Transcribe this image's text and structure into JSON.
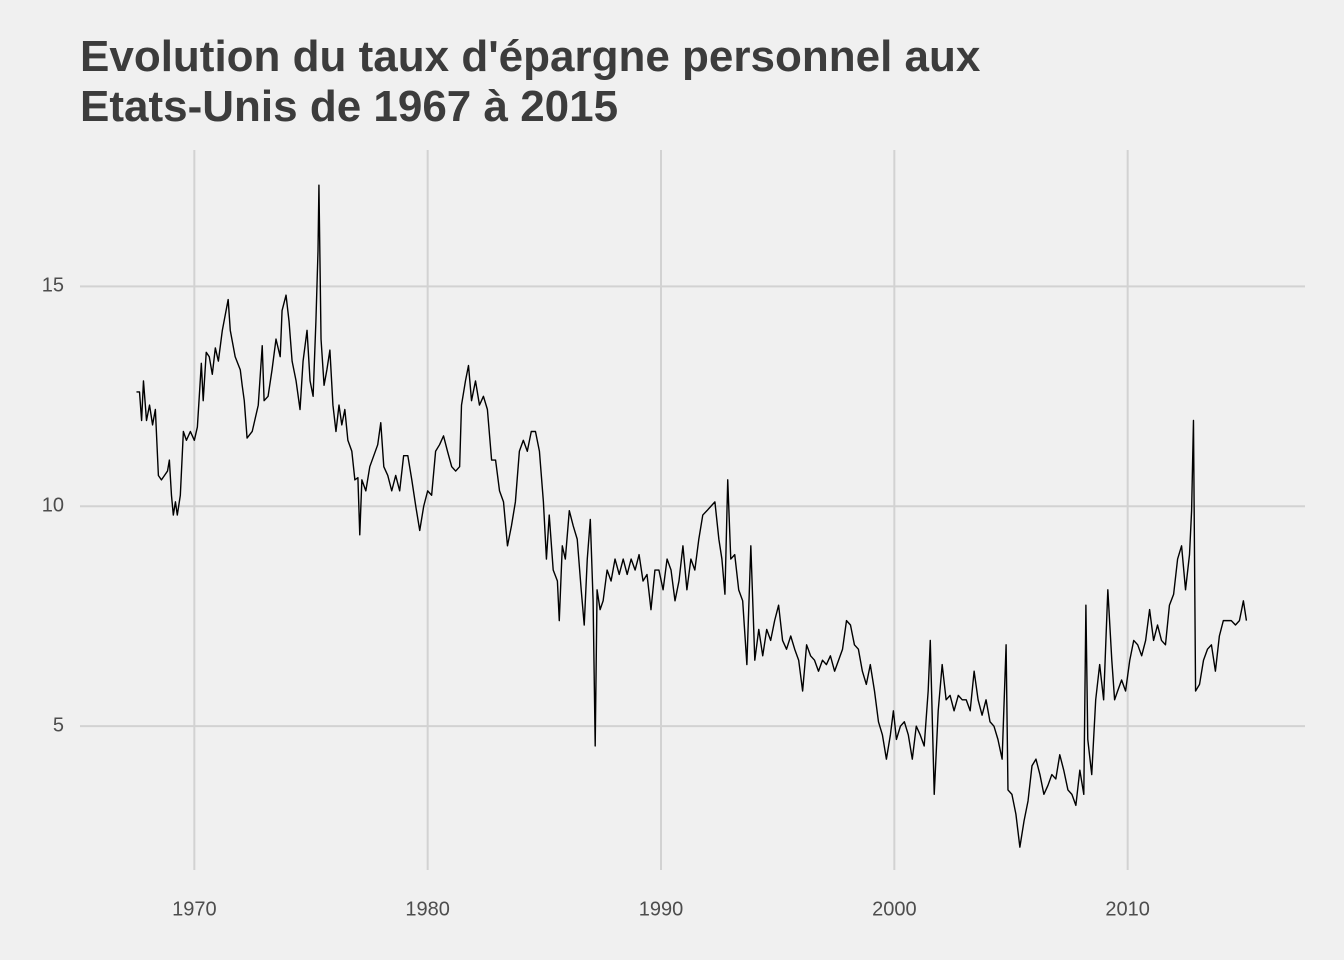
{
  "chart_data": {
    "type": "line",
    "title": "Evolution du taux d'épargne personnel aux Etats-Unis de 1967 à 2015",
    "x": [
      1967.52,
      1967.65,
      1967.74,
      1967.82,
      1967.95,
      1968.08,
      1968.21,
      1968.33,
      1968.46,
      1968.59,
      1968.72,
      1968.85,
      1968.93,
      1969.02,
      1969.1,
      1969.19,
      1969.27,
      1969.4,
      1969.53,
      1969.66,
      1969.83,
      1970.0,
      1970.13,
      1970.3,
      1970.38,
      1970.51,
      1970.64,
      1970.77,
      1970.9,
      1971.03,
      1971.2,
      1971.45,
      1971.54,
      1971.75,
      1971.97,
      1972.05,
      1972.14,
      1972.26,
      1972.48,
      1972.74,
      1972.91,
      1972.99,
      1973.16,
      1973.33,
      1973.5,
      1973.68,
      1973.76,
      1973.93,
      1974.06,
      1974.19,
      1974.36,
      1974.53,
      1974.66,
      1974.83,
      1974.96,
      1975.09,
      1975.21,
      1975.3,
      1975.34,
      1975.43,
      1975.56,
      1975.68,
      1975.81,
      1975.94,
      1976.07,
      1976.2,
      1976.32,
      1976.45,
      1976.58,
      1976.75,
      1976.88,
      1977.01,
      1977.09,
      1977.18,
      1977.35,
      1977.52,
      1977.69,
      1977.86,
      1977.99,
      1978.12,
      1978.29,
      1978.46,
      1978.63,
      1978.8,
      1978.97,
      1979.15,
      1979.32,
      1979.49,
      1979.66,
      1979.83,
      1980.0,
      1980.17,
      1980.34,
      1980.51,
      1980.68,
      1980.85,
      1981.03,
      1981.2,
      1981.37,
      1981.45,
      1981.62,
      1981.75,
      1981.88,
      1982.05,
      1982.22,
      1982.39,
      1982.56,
      1982.74,
      1982.91,
      1983.08,
      1983.25,
      1983.42,
      1983.59,
      1983.76,
      1983.93,
      1984.1,
      1984.27,
      1984.44,
      1984.62,
      1984.79,
      1984.96,
      1985.09,
      1985.21,
      1985.38,
      1985.56,
      1985.64,
      1985.77,
      1985.9,
      1986.07,
      1986.24,
      1986.41,
      1986.58,
      1986.71,
      1986.84,
      1986.97,
      1987.09,
      1987.18,
      1987.26,
      1987.39,
      1987.52,
      1987.69,
      1987.86,
      1988.03,
      1988.21,
      1988.38,
      1988.55,
      1988.72,
      1988.89,
      1989.06,
      1989.23,
      1989.4,
      1989.57,
      1989.74,
      1989.91,
      1990.09,
      1990.26,
      1990.43,
      1990.6,
      1990.77,
      1990.94,
      1991.11,
      1991.28,
      1991.45,
      1991.62,
      1991.79,
      1991.97,
      1992.14,
      1992.31,
      1992.48,
      1992.61,
      1992.74,
      1992.86,
      1992.99,
      1993.16,
      1993.33,
      1993.5,
      1993.68,
      1993.85,
      1994.02,
      1994.19,
      1994.36,
      1994.53,
      1994.7,
      1994.87,
      1995.04,
      1995.21,
      1995.38,
      1995.56,
      1995.73,
      1995.9,
      1996.07,
      1996.24,
      1996.41,
      1996.58,
      1996.75,
      1996.92,
      1997.09,
      1997.26,
      1997.44,
      1997.61,
      1997.78,
      1997.95,
      1998.12,
      1998.29,
      1998.46,
      1998.63,
      1998.8,
      1998.97,
      1999.15,
      1999.32,
      1999.49,
      1999.66,
      1999.83,
      1999.96,
      2000.09,
      2000.26,
      2000.43,
      2000.6,
      2000.77,
      2000.94,
      2001.11,
      2001.28,
      2001.45,
      2001.54,
      2001.71,
      2001.88,
      2002.05,
      2002.22,
      2002.39,
      2002.56,
      2002.74,
      2002.91,
      2003.08,
      2003.25,
      2003.42,
      2003.59,
      2003.76,
      2003.93,
      2004.1,
      2004.27,
      2004.44,
      2004.62,
      2004.79,
      2004.87,
      2005.04,
      2005.21,
      2005.38,
      2005.56,
      2005.73,
      2005.9,
      2006.07,
      2006.24,
      2006.41,
      2006.58,
      2006.75,
      2006.92,
      2007.09,
      2007.26,
      2007.44,
      2007.61,
      2007.78,
      2007.95,
      2008.12,
      2008.21,
      2008.29,
      2008.46,
      2008.63,
      2008.8,
      2008.97,
      2009.15,
      2009.32,
      2009.44,
      2009.57,
      2009.74,
      2009.91,
      2010.09,
      2010.26,
      2010.43,
      2010.6,
      2010.77,
      2010.94,
      2011.11,
      2011.28,
      2011.45,
      2011.62,
      2011.79,
      2011.97,
      2012.14,
      2012.31,
      2012.48,
      2012.65,
      2012.74,
      2012.82,
      2012.91,
      2013.08,
      2013.25,
      2013.42,
      2013.59,
      2013.76,
      2013.93,
      2014.1,
      2014.27,
      2014.44,
      2014.62,
      2014.79,
      2014.96,
      2015.09
    ],
    "series": [
      {
        "color": "#000000",
        "values": [
          12.6,
          12.6,
          11.95,
          12.85,
          11.95,
          12.3,
          11.85,
          12.2,
          10.7,
          10.6,
          10.7,
          10.8,
          11.05,
          10.25,
          9.8,
          10.1,
          9.8,
          10.25,
          11.7,
          11.5,
          11.7,
          11.5,
          11.8,
          13.25,
          12.4,
          13.5,
          13.4,
          13.0,
          13.6,
          13.3,
          14.0,
          14.7,
          14.0,
          13.4,
          13.1,
          12.75,
          12.4,
          11.55,
          11.7,
          12.3,
          13.65,
          12.4,
          12.5,
          13.1,
          13.8,
          13.4,
          14.45,
          14.8,
          14.2,
          13.3,
          12.85,
          12.2,
          13.3,
          14.0,
          12.85,
          12.5,
          14.2,
          15.8,
          17.3,
          13.8,
          12.75,
          13.1,
          13.55,
          12.3,
          11.7,
          12.3,
          11.85,
          12.2,
          11.5,
          11.25,
          10.6,
          10.65,
          9.35,
          10.6,
          10.35,
          10.9,
          11.15,
          11.4,
          11.9,
          10.9,
          10.7,
          10.35,
          10.7,
          10.35,
          11.15,
          11.15,
          10.6,
          10.0,
          9.45,
          10.0,
          10.35,
          10.25,
          11.25,
          11.4,
          11.6,
          11.25,
          10.9,
          10.8,
          10.9,
          12.3,
          12.85,
          13.2,
          12.4,
          12.85,
          12.3,
          12.5,
          12.2,
          11.05,
          11.05,
          10.35,
          10.1,
          9.1,
          9.55,
          10.1,
          11.25,
          11.5,
          11.25,
          11.7,
          11.7,
          11.25,
          10.1,
          8.8,
          9.8,
          8.55,
          8.3,
          7.4,
          9.1,
          8.8,
          9.9,
          9.55,
          9.25,
          8.1,
          7.3,
          8.8,
          9.7,
          7.85,
          4.55,
          8.1,
          7.65,
          7.85,
          8.55,
          8.3,
          8.8,
          8.45,
          8.8,
          8.45,
          8.8,
          8.55,
          8.9,
          8.3,
          8.45,
          7.65,
          8.55,
          8.55,
          8.1,
          8.8,
          8.55,
          7.85,
          8.3,
          9.1,
          8.1,
          8.8,
          8.55,
          9.25,
          9.8,
          9.9,
          10.0,
          10.1,
          9.25,
          8.8,
          8.0,
          10.6,
          8.8,
          8.9,
          8.1,
          7.85,
          6.4,
          9.1,
          6.5,
          7.2,
          6.6,
          7.2,
          6.95,
          7.4,
          7.75,
          6.95,
          6.75,
          7.05,
          6.75,
          6.5,
          5.8,
          6.85,
          6.6,
          6.5,
          6.25,
          6.5,
          6.4,
          6.6,
          6.25,
          6.5,
          6.75,
          7.4,
          7.3,
          6.85,
          6.75,
          6.25,
          5.95,
          6.4,
          5.8,
          5.1,
          4.8,
          4.25,
          4.8,
          5.35,
          4.7,
          5.0,
          5.1,
          4.8,
          4.25,
          5.0,
          4.8,
          4.55,
          5.8,
          6.95,
          3.45,
          5.35,
          6.4,
          5.6,
          5.7,
          5.35,
          5.7,
          5.6,
          5.6,
          5.35,
          6.25,
          5.6,
          5.25,
          5.6,
          5.1,
          5.0,
          4.7,
          4.25,
          6.85,
          3.55,
          3.45,
          3.0,
          2.25,
          2.85,
          3.3,
          4.1,
          4.25,
          3.9,
          3.45,
          3.65,
          3.9,
          3.8,
          4.35,
          4.0,
          3.55,
          3.45,
          3.2,
          4.0,
          3.45,
          7.75,
          4.7,
          3.9,
          5.6,
          6.4,
          5.6,
          8.1,
          6.5,
          5.6,
          5.8,
          6.05,
          5.8,
          6.5,
          6.95,
          6.85,
          6.6,
          6.95,
          7.65,
          6.95,
          7.3,
          6.95,
          6.85,
          7.75,
          8.0,
          8.8,
          9.1,
          8.1,
          8.9,
          9.9,
          11.95,
          5.8,
          5.95,
          6.5,
          6.75,
          6.85,
          6.25,
          7.05,
          7.4,
          7.4,
          7.4,
          7.3,
          7.4,
          7.85,
          7.4
        ]
      }
    ],
    "xlim": [
      1965.1,
      2017.6
    ],
    "ylim": [
      1.73,
      18.1
    ],
    "xticks": [
      1970,
      1980,
      1990,
      2000,
      2010
    ],
    "yticks": [
      5,
      10,
      15
    ],
    "grid": true
  }
}
